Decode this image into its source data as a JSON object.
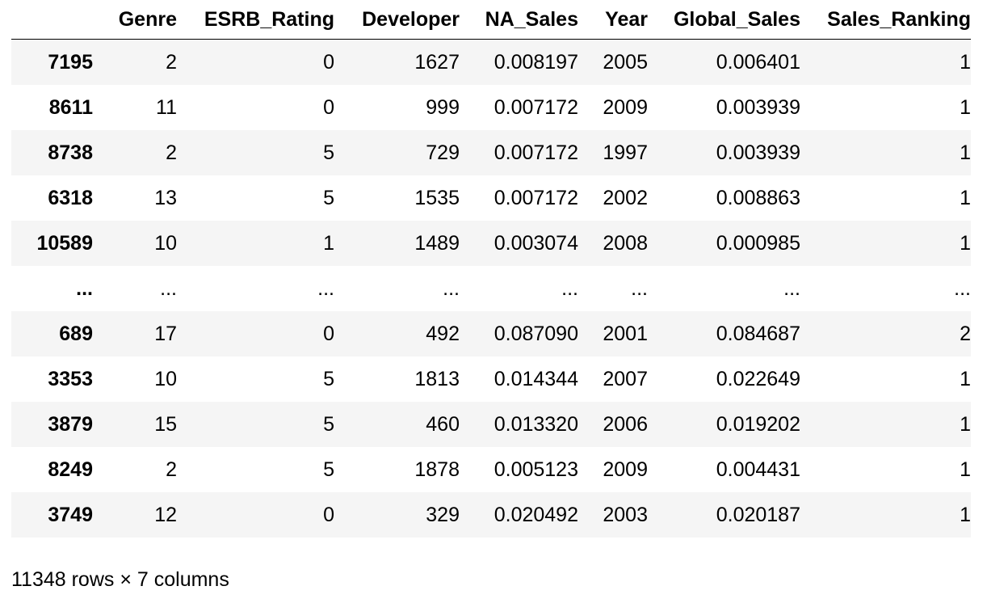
{
  "table": {
    "columns": [
      "Genre",
      "ESRB_Rating",
      "Developer",
      "NA_Sales",
      "Year",
      "Global_Sales",
      "Sales_Ranking"
    ],
    "rows": [
      {
        "index": "7195",
        "cells": [
          "2",
          "0",
          "1627",
          "0.008197",
          "2005",
          "0.006401",
          "1"
        ]
      },
      {
        "index": "8611",
        "cells": [
          "11",
          "0",
          "999",
          "0.007172",
          "2009",
          "0.003939",
          "1"
        ]
      },
      {
        "index": "8738",
        "cells": [
          "2",
          "5",
          "729",
          "0.007172",
          "1997",
          "0.003939",
          "1"
        ]
      },
      {
        "index": "6318",
        "cells": [
          "13",
          "5",
          "1535",
          "0.007172",
          "2002",
          "0.008863",
          "1"
        ]
      },
      {
        "index": "10589",
        "cells": [
          "10",
          "1",
          "1489",
          "0.003074",
          "2008",
          "0.000985",
          "1"
        ]
      },
      {
        "index": "...",
        "cells": [
          "...",
          "...",
          "...",
          "...",
          "...",
          "...",
          "..."
        ]
      },
      {
        "index": "689",
        "cells": [
          "17",
          "0",
          "492",
          "0.087090",
          "2001",
          "0.084687",
          "2"
        ]
      },
      {
        "index": "3353",
        "cells": [
          "10",
          "5",
          "1813",
          "0.014344",
          "2007",
          "0.022649",
          "1"
        ]
      },
      {
        "index": "3879",
        "cells": [
          "15",
          "5",
          "460",
          "0.013320",
          "2006",
          "0.019202",
          "1"
        ]
      },
      {
        "index": "8249",
        "cells": [
          "2",
          "5",
          "1878",
          "0.005123",
          "2009",
          "0.004431",
          "1"
        ]
      },
      {
        "index": "3749",
        "cells": [
          "12",
          "0",
          "329",
          "0.020492",
          "2003",
          "0.020187",
          "1"
        ]
      }
    ]
  },
  "footer": {
    "shape": "11348 rows × 7 columns"
  },
  "colors": {
    "stripe": "#f5f5f5",
    "background": "#ffffff",
    "text": "#000000"
  }
}
